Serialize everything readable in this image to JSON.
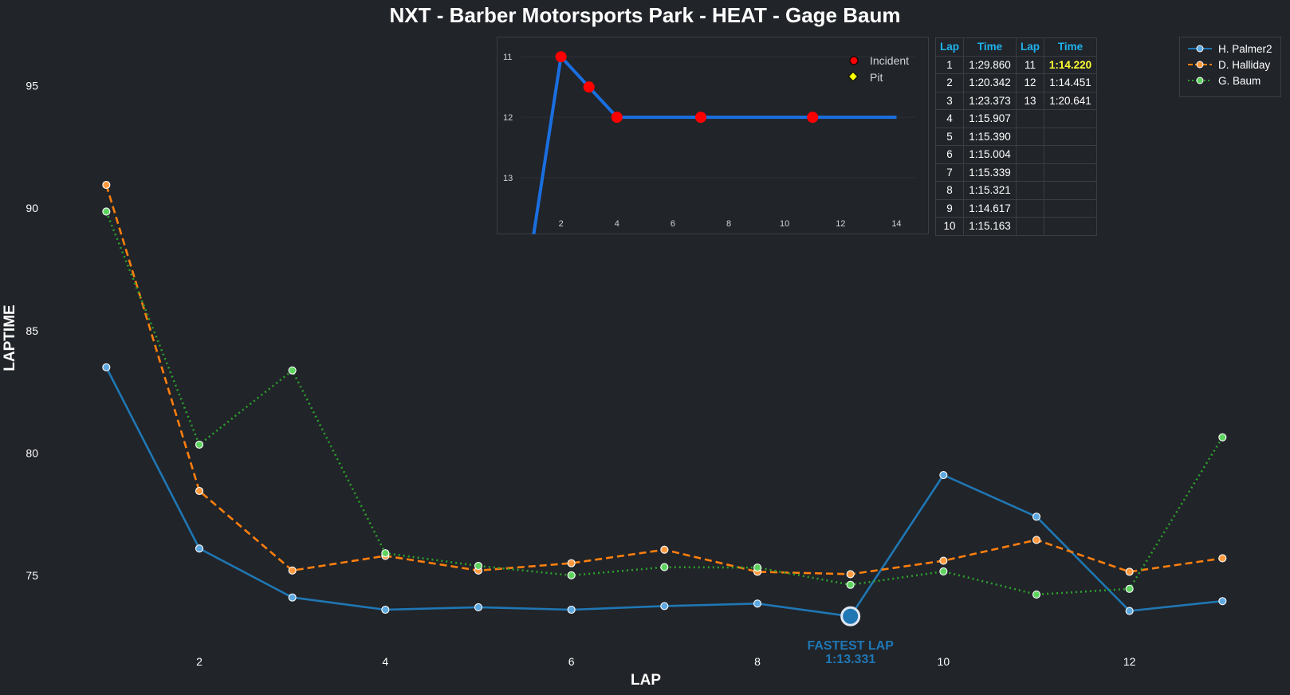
{
  "title": "NXT - Barber Motorsports Park - HEAT - Gage Baum",
  "chart_data": [
    {
      "type": "line",
      "title": "NXT - Barber Motorsports Park - HEAT - Gage Baum",
      "xlabel": "LAP",
      "ylabel": "LAPTIME",
      "x": [
        1,
        2,
        3,
        4,
        5,
        6,
        7,
        8,
        9,
        10,
        11,
        12,
        13
      ],
      "xlim": [
        0.2,
        13.4
      ],
      "ylim": [
        72.2,
        97.2
      ],
      "xticks": [
        2,
        4,
        6,
        8,
        10,
        12
      ],
      "yticks": [
        75,
        80,
        85,
        90,
        95
      ],
      "grid": false,
      "legend_position": "top-right",
      "series": [
        {
          "name": "H. Palmer2",
          "color": "#1f77b4",
          "marker_fill": "#5ea8e0",
          "dash": "solid",
          "values": [
            83.5,
            76.1,
            74.1,
            73.6,
            73.7,
            73.6,
            73.75,
            73.85,
            73.331,
            79.1,
            77.4,
            73.55,
            73.95
          ]
        },
        {
          "name": "D. Halliday",
          "color": "#ff7f0e",
          "marker_fill": "#ff9a40",
          "dash": "dashed",
          "values": [
            90.95,
            78.45,
            75.2,
            75.8,
            75.2,
            75.5,
            76.05,
            75.15,
            75.05,
            75.6,
            76.45,
            75.15,
            75.7
          ]
        },
        {
          "name": "G. Baum",
          "color": "#2ca02c",
          "marker_fill": "#5fd35f",
          "dash": "dotted",
          "values": [
            89.86,
            80.342,
            83.373,
            75.907,
            75.39,
            75.004,
            75.339,
            75.321,
            74.617,
            75.163,
            74.22,
            74.451,
            80.641
          ]
        }
      ],
      "annotation": {
        "label": "FASTEST LAP",
        "value_text": "1:13.331",
        "x": 9,
        "y": 73.331,
        "color": "#1f77b4"
      }
    },
    {
      "type": "line",
      "title": "",
      "x": [
        1,
        2,
        3,
        4,
        5,
        6,
        7,
        8,
        9,
        10,
        11,
        12,
        13,
        14
      ],
      "values": [
        14,
        11,
        11.5,
        12,
        12,
        12,
        12,
        12,
        12,
        12,
        12,
        12,
        12,
        12
      ],
      "xlim": [
        0.1,
        14.7
      ],
      "ylim": [
        14.25,
        10.8
      ],
      "xticks": [
        2,
        4,
        6,
        8,
        10,
        12,
        14
      ],
      "yticks": [
        11,
        12,
        13,
        14
      ],
      "line_color": "#1a6fe0",
      "incident_laps": [
        2,
        3,
        4,
        7,
        11
      ],
      "pit_laps": [],
      "legend": [
        "Incident",
        "Pit"
      ]
    }
  ],
  "table": {
    "headers": [
      "Lap",
      "Time",
      "Lap",
      "Time"
    ],
    "rows": [
      [
        "1",
        "1:29.860",
        "11",
        "1:14.220"
      ],
      [
        "2",
        "1:20.342",
        "12",
        "1:14.451"
      ],
      [
        "3",
        "1:23.373",
        "13",
        "1:20.641"
      ],
      [
        "4",
        "1:15.907",
        "",
        ""
      ],
      [
        "5",
        "1:15.390",
        "",
        ""
      ],
      [
        "6",
        "1:15.004",
        "",
        ""
      ],
      [
        "7",
        "1:15.339",
        "",
        ""
      ],
      [
        "8",
        "1:15.321",
        "",
        ""
      ],
      [
        "9",
        "1:14.617",
        "",
        ""
      ],
      [
        "10",
        "1:15.163",
        "",
        ""
      ]
    ],
    "best_lap_time": "1:14.220",
    "header_color": "#1fb3ee",
    "best_color": "#ffff33"
  },
  "colors": {
    "background": "#212429",
    "text": "#ffffff",
    "border": "#3a3e45"
  }
}
